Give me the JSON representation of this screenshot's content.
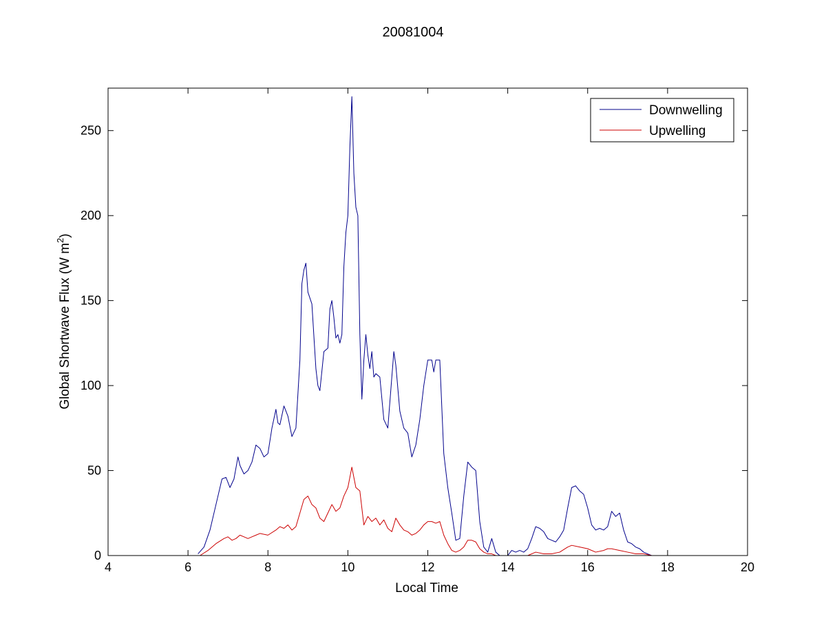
{
  "chart_data": {
    "type": "line",
    "title": "20081004",
    "xlabel": "Local Time",
    "ylabel_main": "Global Shortwave Flux (W m",
    "ylabel_sup": "2",
    "ylabel_end": ")",
    "xlim": [
      4,
      20
    ],
    "ylim": [
      0,
      275
    ],
    "xticks": [
      4,
      6,
      8,
      10,
      12,
      14,
      16,
      18,
      20
    ],
    "xtick_labels": [
      "4",
      "6",
      "8",
      "10",
      "12",
      "14",
      "16",
      "18",
      "20"
    ],
    "yticks": [
      0,
      50,
      100,
      150,
      200,
      250
    ],
    "ytick_labels": [
      "0",
      "50",
      "100",
      "150",
      "200",
      "250"
    ],
    "grid": false,
    "legend_position": "top-right",
    "series": [
      {
        "name": "Downwelling",
        "color": "#00008b",
        "x": [
          6.25,
          6.4,
          6.55,
          6.7,
          6.85,
          6.95,
          7.05,
          7.15,
          7.25,
          7.3,
          7.4,
          7.5,
          7.6,
          7.7,
          7.8,
          7.9,
          8.0,
          8.1,
          8.2,
          8.25,
          8.3,
          8.4,
          8.5,
          8.6,
          8.7,
          8.8,
          8.85,
          8.9,
          8.95,
          9.0,
          9.1,
          9.2,
          9.25,
          9.3,
          9.4,
          9.5,
          9.55,
          9.6,
          9.65,
          9.7,
          9.75,
          9.8,
          9.85,
          9.9,
          9.95,
          10.0,
          10.05,
          10.1,
          10.15,
          10.2,
          10.25,
          10.3,
          10.35,
          10.4,
          10.45,
          10.5,
          10.55,
          10.6,
          10.65,
          10.7,
          10.8,
          10.9,
          11.0,
          11.1,
          11.15,
          11.2,
          11.3,
          11.4,
          11.5,
          11.6,
          11.7,
          11.8,
          11.9,
          12.0,
          12.1,
          12.15,
          12.2,
          12.3,
          12.4,
          12.5,
          12.6,
          12.7,
          12.8,
          12.9,
          13.0,
          13.1,
          13.2,
          13.3,
          13.4,
          13.5,
          13.6,
          13.7,
          13.8,
          14.0,
          14.1,
          14.2,
          14.3,
          14.4,
          14.5,
          14.6,
          14.7,
          14.8,
          14.9,
          15.0,
          15.1,
          15.2,
          15.3,
          15.4,
          15.5,
          15.6,
          15.7,
          15.8,
          15.9,
          16.0,
          16.1,
          16.2,
          16.3,
          16.4,
          16.5,
          16.6,
          16.7,
          16.8,
          16.9,
          17.0,
          17.1,
          17.2,
          17.3,
          17.4,
          17.5,
          17.6,
          17.7
        ],
        "y": [
          1,
          5,
          15,
          30,
          45,
          46,
          40,
          45,
          58,
          53,
          48,
          50,
          55,
          65,
          63,
          58,
          60,
          75,
          86,
          78,
          77,
          88,
          82,
          70,
          75,
          115,
          160,
          168,
          172,
          155,
          148,
          110,
          100,
          97,
          120,
          122,
          145,
          150,
          140,
          128,
          130,
          125,
          130,
          170,
          190,
          200,
          240,
          270,
          225,
          205,
          200,
          130,
          92,
          115,
          130,
          118,
          110,
          120,
          105,
          107,
          105,
          80,
          75,
          105,
          120,
          112,
          85,
          75,
          72,
          58,
          65,
          80,
          100,
          115,
          115,
          108,
          115,
          115,
          60,
          40,
          25,
          9,
          10,
          35,
          55,
          52,
          50,
          20,
          5,
          2,
          10,
          2,
          0,
          0,
          3,
          2,
          3,
          2,
          4,
          10,
          17,
          16,
          14,
          10,
          9,
          8,
          11,
          15,
          28,
          40,
          41,
          38,
          36,
          28,
          18,
          15,
          16,
          15,
          17,
          26,
          23,
          25,
          15,
          8,
          7,
          5,
          4,
          2,
          1,
          0,
          0
        ],
        "gap_after": [
          13.8
        ],
        "tail": {
          "x": [
            18.7,
            20.0
          ],
          "y": [
            0,
            0
          ]
        }
      },
      {
        "name": "Upwelling",
        "color": "#cc0000",
        "x": [
          6.3,
          6.5,
          6.7,
          6.9,
          7.0,
          7.1,
          7.2,
          7.3,
          7.4,
          7.5,
          7.6,
          7.7,
          7.8,
          8.0,
          8.2,
          8.3,
          8.4,
          8.5,
          8.6,
          8.7,
          8.8,
          8.9,
          9.0,
          9.1,
          9.2,
          9.3,
          9.4,
          9.5,
          9.6,
          9.7,
          9.8,
          9.9,
          10.0,
          10.1,
          10.2,
          10.3,
          10.4,
          10.5,
          10.6,
          10.7,
          10.8,
          10.9,
          11.0,
          11.1,
          11.2,
          11.3,
          11.4,
          11.5,
          11.6,
          11.7,
          11.8,
          11.9,
          12.0,
          12.1,
          12.2,
          12.3,
          12.4,
          12.5,
          12.6,
          12.7,
          12.8,
          12.9,
          13.0,
          13.1,
          13.2,
          13.3,
          13.4,
          13.5,
          13.6,
          13.7,
          13.8,
          14.0,
          14.3,
          14.5,
          14.7,
          14.9,
          15.1,
          15.3,
          15.5,
          15.6,
          15.8,
          16.0,
          16.2,
          16.4,
          16.5,
          16.6,
          16.8,
          17.0,
          17.2,
          17.4,
          17.6,
          17.7
        ],
        "y": [
          0,
          3,
          7,
          10,
          11,
          9,
          10,
          12,
          11,
          10,
          11,
          12,
          13,
          12,
          15,
          17,
          16,
          18,
          15,
          17,
          25,
          33,
          35,
          30,
          28,
          22,
          20,
          25,
          30,
          26,
          28,
          35,
          40,
          52,
          40,
          38,
          18,
          23,
          20,
          22,
          18,
          21,
          16,
          14,
          22,
          18,
          15,
          14,
          12,
          13,
          15,
          18,
          20,
          20,
          19,
          20,
          12,
          7,
          3,
          2,
          3,
          5,
          9,
          9,
          8,
          4,
          2,
          1,
          1,
          0,
          0,
          0,
          0,
          0,
          2,
          1,
          1,
          2,
          5,
          6,
          5,
          4,
          2,
          3,
          4,
          4,
          3,
          2,
          1,
          1,
          0,
          0
        ],
        "gap_after": [],
        "tail": {
          "x": [
            18.7,
            20.0
          ],
          "y": [
            0,
            0
          ]
        }
      }
    ]
  }
}
